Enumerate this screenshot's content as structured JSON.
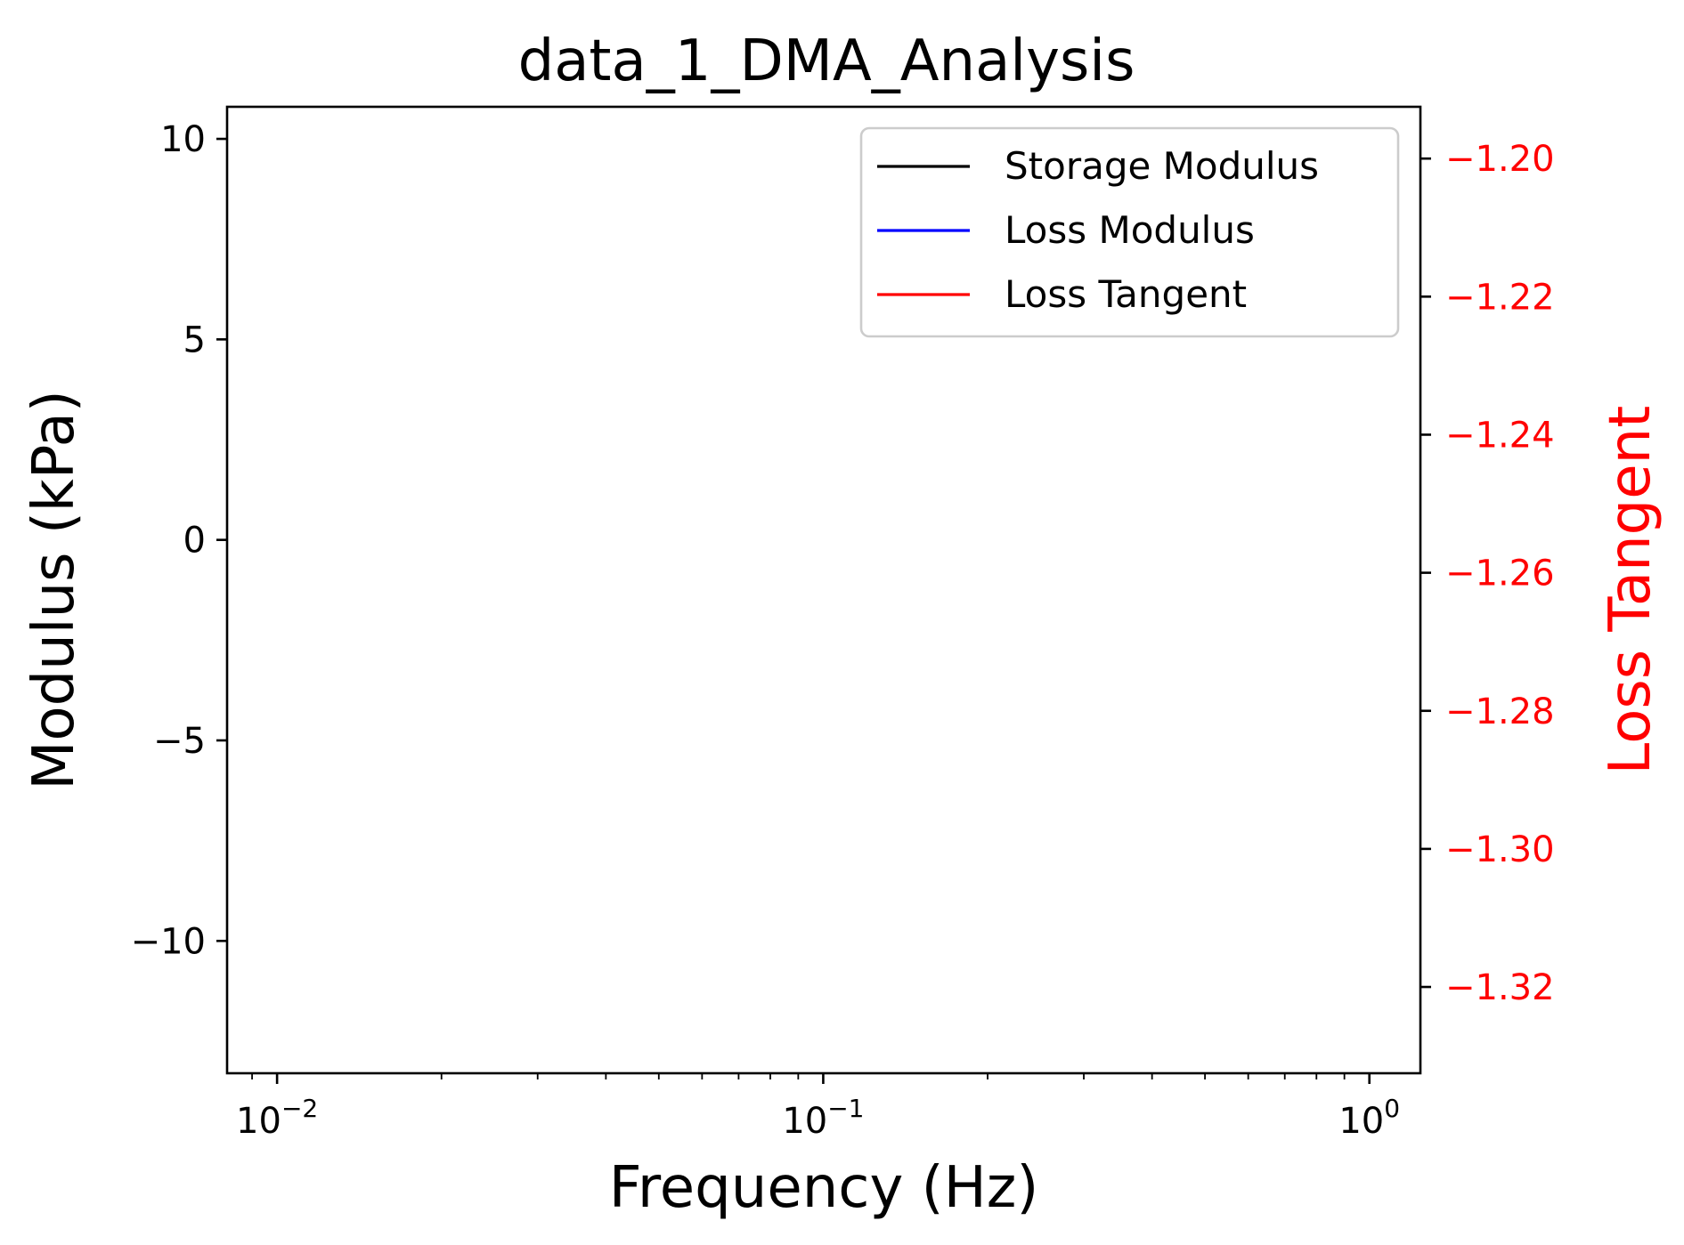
{
  "chart_data": {
    "type": "line",
    "title": "data_1_DMA_Analysis",
    "xlabel": "Frequency (Hz)",
    "ylabel": "Modulus (kPa)",
    "y2label": "Loss Tangent",
    "xscale": "log",
    "xlim": [
      0.0081,
      1.24
    ],
    "ylim": [
      -13.3,
      10.8
    ],
    "y2lim": [
      -1.3325,
      -1.1925
    ],
    "x_major_ticks": [
      {
        "value": 0.01,
        "base": "10",
        "exp": "−2"
      },
      {
        "value": 0.1,
        "base": "10",
        "exp": "−1"
      },
      {
        "value": 1,
        "base": "10",
        "exp": "0"
      }
    ],
    "y_ticks": [
      {
        "value": 10,
        "label": "10"
      },
      {
        "value": 5,
        "label": "5"
      },
      {
        "value": 0,
        "label": "0"
      },
      {
        "value": -5,
        "label": "−5"
      },
      {
        "value": -10,
        "label": "−10"
      }
    ],
    "y2_ticks": [
      {
        "value": -1.2,
        "label": "−1.20"
      },
      {
        "value": -1.22,
        "label": "−1.22"
      },
      {
        "value": -1.24,
        "label": "−1.24"
      },
      {
        "value": -1.26,
        "label": "−1.26"
      },
      {
        "value": -1.28,
        "label": "−1.28"
      },
      {
        "value": -1.3,
        "label": "−1.30"
      },
      {
        "value": -1.32,
        "label": "−1.32"
      }
    ],
    "series": [
      {
        "name": "Storage Modulus",
        "color": "#000000",
        "axis": "left",
        "x": [],
        "y": []
      },
      {
        "name": "Loss Modulus",
        "color": "#0000ff",
        "axis": "left",
        "x": [],
        "y": []
      },
      {
        "name": "Loss Tangent",
        "color": "#ff0000",
        "axis": "right",
        "x": [],
        "y": []
      }
    ],
    "legend": "top-right",
    "grid": false,
    "colors": {
      "axis": "#000000",
      "secondary_axis": "#ff0000"
    }
  }
}
